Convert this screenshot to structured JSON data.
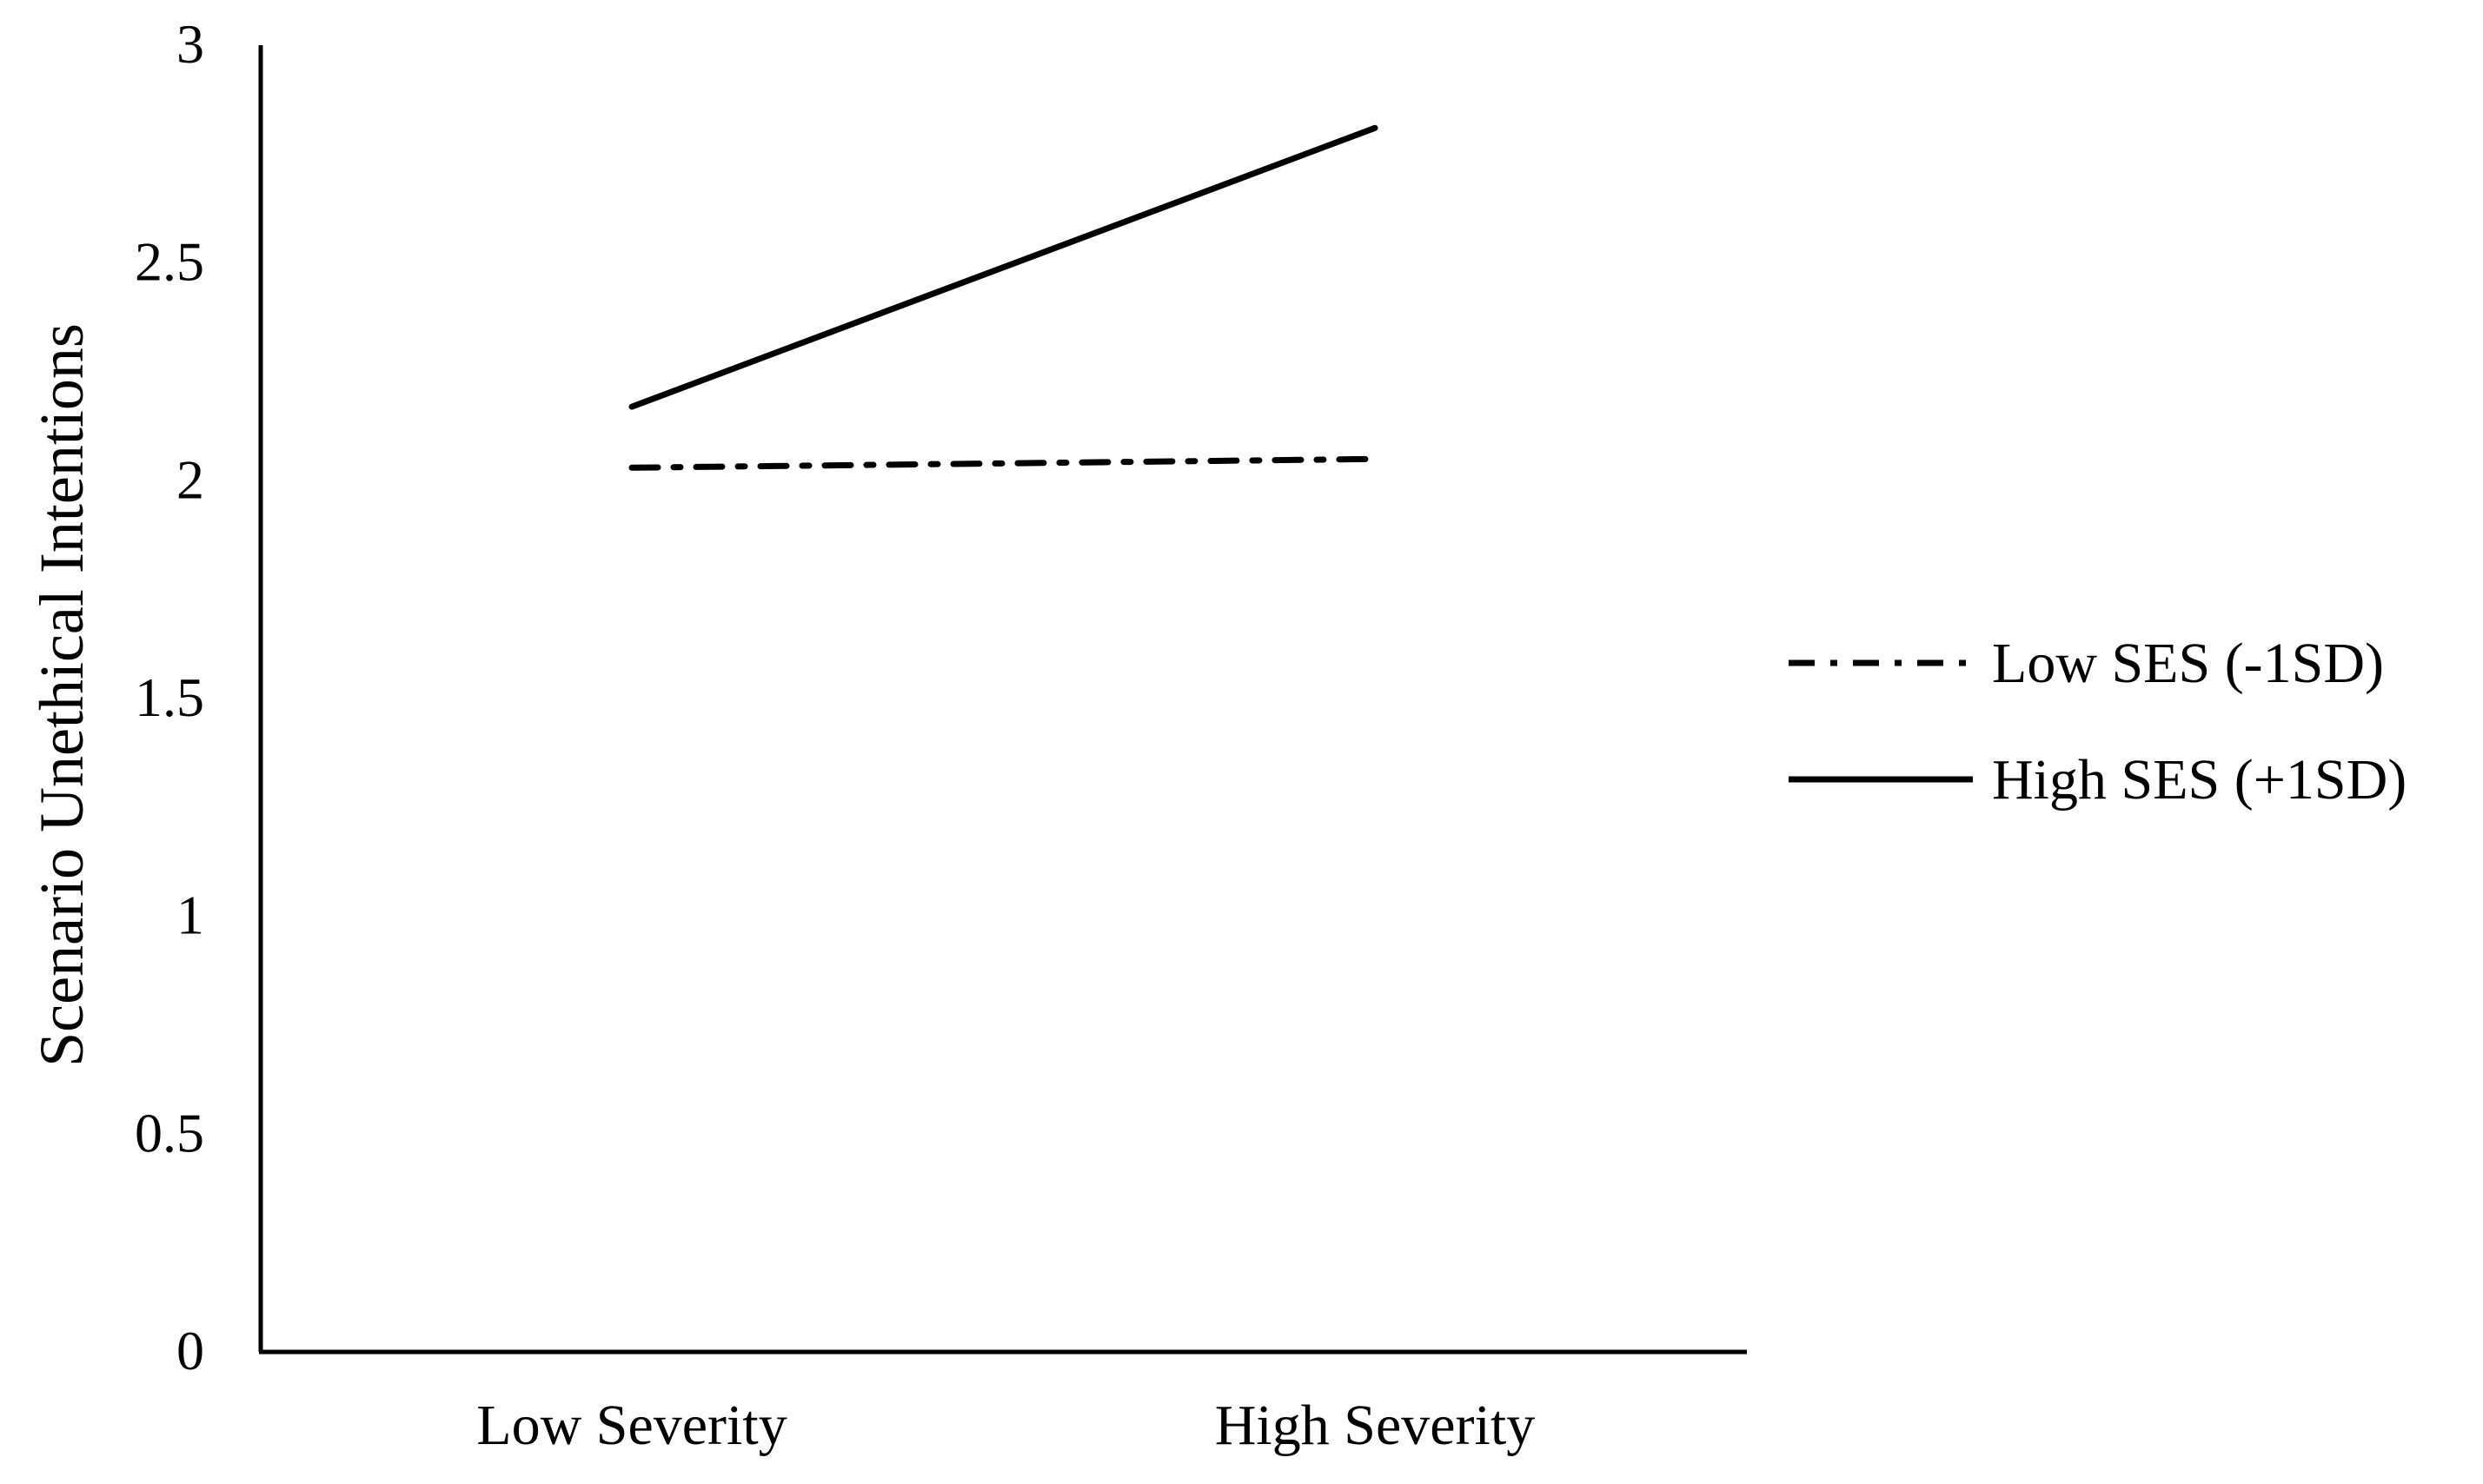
{
  "chart_data": {
    "type": "line",
    "categories": [
      "Low Severity",
      "High Severity"
    ],
    "series": [
      {
        "name": "Low SES (-1SD)",
        "values": [
          2.03,
          2.05
        ],
        "line_style": "dash-dot",
        "color": "#000000"
      },
      {
        "name": "High SES (+1SD)",
        "values": [
          2.17,
          2.81
        ],
        "line_style": "solid",
        "color": "#000000"
      }
    ],
    "xlabel": "",
    "ylabel": "Scenario Unethical Intentions",
    "ylim": [
      0,
      3
    ],
    "yticks": [
      "0",
      "0.5",
      "1",
      "1.5",
      "2",
      "2.5",
      "3"
    ],
    "grid": false,
    "legend_position": "right"
  }
}
